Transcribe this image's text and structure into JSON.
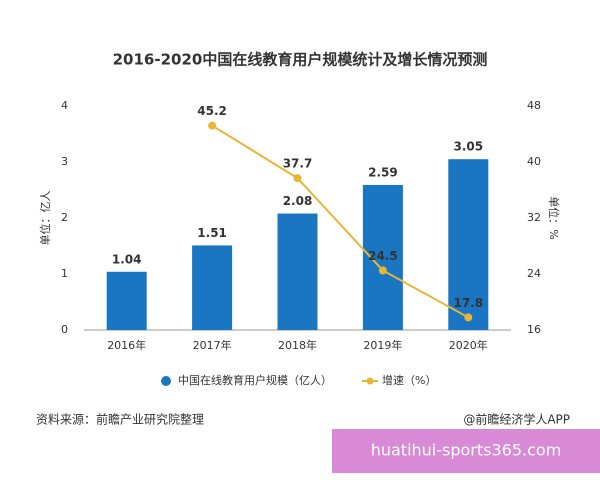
{
  "chart_data": {
    "type": "bar-line",
    "title": "2016-2020中国在线教育用户规模统计及增长情况预测",
    "categories": [
      "2016年",
      "2017年",
      "2018年",
      "2019年",
      "2020年"
    ],
    "series": [
      {
        "name": "中国在线教育用户规模（亿人）",
        "type": "bar",
        "color": "#1a76c2",
        "values": [
          1.04,
          1.51,
          2.08,
          2.59,
          3.05
        ]
      },
      {
        "name": "增速（%）",
        "type": "line",
        "axis": "y2",
        "color": "#e9b534",
        "values": [
          null,
          45.2,
          37.7,
          24.5,
          17.8
        ]
      }
    ],
    "ylabel": "单位：亿人",
    "y2label": "单位：%",
    "ylim": [
      0,
      4
    ],
    "yticks": [
      0,
      1,
      2,
      3,
      4
    ],
    "y2lim": [
      16,
      48
    ],
    "y2ticks": [
      16,
      24,
      32,
      40,
      48
    ],
    "grid": false,
    "legend": "bottom",
    "source": "资料来源：前瞻产业研究院整理",
    "credit": "@前瞻经济学人APP",
    "watermark": "huatihui-sports365.com"
  }
}
